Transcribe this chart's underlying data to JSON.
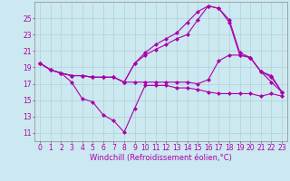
{
  "background_color": "#cce8f0",
  "grid_color": "#aacccc",
  "line_color": "#aa00aa",
  "marker": "D",
  "markersize": 2,
  "linewidth": 0.8,
  "xlabel": "Windchill (Refroidissement éolien,°C)",
  "xlabel_fontsize": 6,
  "tick_fontsize": 5.5,
  "xlim": [
    -0.5,
    23.5
  ],
  "ylim": [
    10,
    27
  ],
  "yticks": [
    11,
    13,
    15,
    17,
    19,
    21,
    23,
    25
  ],
  "xticks": [
    0,
    1,
    2,
    3,
    4,
    5,
    6,
    7,
    8,
    9,
    10,
    11,
    12,
    13,
    14,
    15,
    16,
    17,
    18,
    19,
    20,
    21,
    22,
    23
  ],
  "series": [
    {
      "x": [
        0,
        1,
        2,
        3,
        4,
        5,
        6,
        7,
        8,
        9,
        10,
        11,
        12,
        13,
        14,
        15,
        16,
        17,
        18,
        19,
        20,
        21,
        22,
        23
      ],
      "y": [
        19.5,
        18.7,
        18.3,
        17.2,
        15.2,
        14.8,
        13.2,
        12.5,
        11.1,
        14.0,
        16.8,
        16.8,
        16.8,
        16.5,
        16.5,
        16.3,
        16.0,
        15.8,
        15.8,
        15.8,
        15.8,
        15.5,
        15.8,
        15.5
      ]
    },
    {
      "x": [
        0,
        1,
        2,
        3,
        4,
        5,
        6,
        7,
        8,
        9,
        10,
        11,
        12,
        13,
        14,
        15,
        16,
        17,
        18,
        19,
        20,
        21,
        22,
        23
      ],
      "y": [
        19.5,
        18.7,
        18.3,
        18.0,
        18.0,
        17.8,
        17.8,
        17.8,
        17.2,
        17.2,
        17.2,
        17.2,
        17.2,
        17.2,
        17.2,
        17.0,
        17.5,
        19.8,
        20.5,
        20.5,
        20.2,
        18.5,
        17.2,
        16.0
      ]
    },
    {
      "x": [
        0,
        1,
        2,
        3,
        4,
        5,
        6,
        7,
        8,
        9,
        10,
        11,
        12,
        13,
        14,
        15,
        16,
        17,
        18,
        19,
        20,
        21,
        22,
        23
      ],
      "y": [
        19.5,
        18.7,
        18.3,
        18.0,
        18.0,
        17.8,
        17.8,
        17.8,
        17.2,
        19.5,
        20.5,
        21.2,
        21.8,
        22.5,
        23.0,
        24.8,
        26.5,
        26.2,
        24.5,
        20.5,
        20.2,
        18.5,
        17.8,
        16.0
      ]
    },
    {
      "x": [
        0,
        1,
        2,
        3,
        4,
        5,
        6,
        7,
        8,
        9,
        10,
        11,
        12,
        13,
        14,
        15,
        16,
        17,
        18,
        19,
        20,
        21,
        22,
        23
      ],
      "y": [
        19.5,
        18.7,
        18.3,
        18.0,
        18.0,
        17.8,
        17.8,
        17.8,
        17.2,
        19.5,
        20.8,
        21.8,
        22.5,
        23.2,
        24.5,
        25.8,
        26.5,
        26.2,
        24.8,
        20.8,
        20.2,
        18.5,
        18.0,
        16.0
      ]
    }
  ]
}
